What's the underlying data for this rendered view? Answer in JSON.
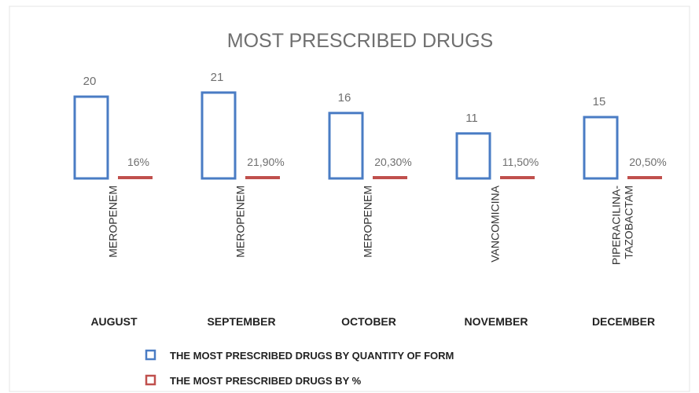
{
  "chart_data": {
    "type": "bar",
    "title": "MOST PRESCRIBED DRUGS",
    "categories": [
      "AUGUST",
      "SEPTEMBER",
      "OCTOBER",
      "NOVEMBER",
      "DECEMBER"
    ],
    "drug_labels": [
      [
        "MEROPENEM"
      ],
      [
        "MEROPENEM"
      ],
      [
        "MEROPENEM"
      ],
      [
        "VANCOMICINA"
      ],
      [
        "PIPERACILINA-",
        "TAZOBACTAM"
      ]
    ],
    "series": [
      {
        "name": "THE MOST PRESCRIBED DRUGS BY QUANTITY OF FORM",
        "values": [
          20,
          21,
          16,
          11,
          15
        ],
        "labels": [
          "20",
          "21",
          "16",
          "11",
          "15"
        ],
        "color": "#4a7cc4"
      },
      {
        "name": "THE MOST PRESCRIBED DRUGS BY %",
        "values": [
          16,
          21.9,
          20.3,
          11.5,
          20.5
        ],
        "labels": [
          "16%",
          "21,90%",
          "20,30%",
          "11,50%",
          "20,50%"
        ],
        "color": "#c0504d"
      }
    ],
    "legend_position": "bottom",
    "grid": false
  }
}
